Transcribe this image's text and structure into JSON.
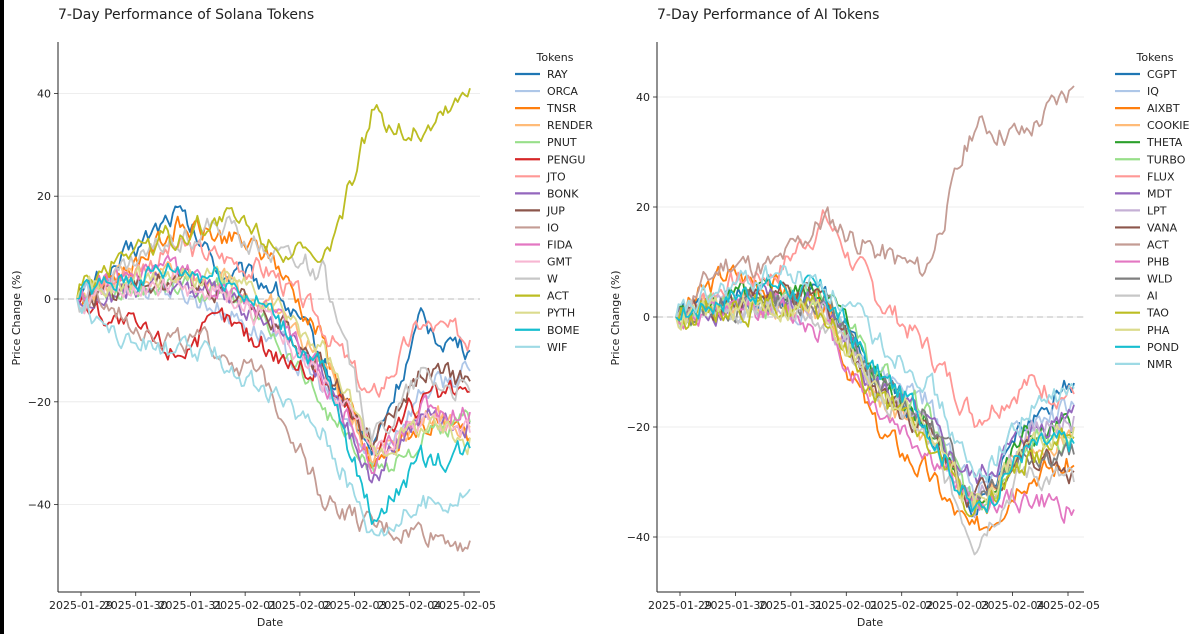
{
  "chart_data": [
    {
      "type": "line",
      "title": "7-Day Performance of Solana Tokens",
      "xlabel": "Date",
      "ylabel": "Price Change (%)",
      "ylim": [
        -57,
        50
      ],
      "yticks": [
        40,
        20,
        0,
        -20,
        -40
      ],
      "x_ticks": [
        "2025-01-29",
        "2025-01-30",
        "2025-01-31",
        "2025-02-01",
        "2025-02-02",
        "2025-02-03",
        "2025-02-04",
        "2025-02-05"
      ],
      "legend_title": "Tokens",
      "zero_line": true,
      "series": [
        {
          "name": "RAY",
          "color": "#1f77b4",
          "values": [
            0,
            8,
            17,
            5,
            3,
            -12,
            -30,
            -5,
            -10
          ]
        },
        {
          "name": "ORCA",
          "color": "#aec7e8",
          "values": [
            0,
            3,
            2,
            -2,
            -8,
            -17,
            -32,
            -18,
            -14
          ]
        },
        {
          "name": "TNSR",
          "color": "#ff7f0e",
          "values": [
            0,
            6,
            14,
            12,
            8,
            -8,
            -33,
            -24,
            -27
          ]
        },
        {
          "name": "RENDER",
          "color": "#ffbb78",
          "values": [
            0,
            4,
            6,
            4,
            -2,
            -12,
            -30,
            -22,
            -25
          ]
        },
        {
          "name": "PNUT",
          "color": "#98df8a",
          "values": [
            0,
            2,
            3,
            1,
            -6,
            -20,
            -34,
            -28,
            -24
          ]
        },
        {
          "name": "PENGU",
          "color": "#d62728",
          "values": [
            0,
            -5,
            -10,
            -4,
            -10,
            -15,
            -28,
            -20,
            -18
          ]
        },
        {
          "name": "JTO",
          "color": "#ff9896",
          "values": [
            0,
            5,
            10,
            8,
            5,
            -5,
            -20,
            -5,
            -8
          ]
        },
        {
          "name": "BONK",
          "color": "#9467bd",
          "values": [
            0,
            1,
            3,
            0,
            -6,
            -14,
            -35,
            -22,
            -24
          ]
        },
        {
          "name": "JUP",
          "color": "#8c564b",
          "values": [
            0,
            2,
            4,
            2,
            -4,
            -12,
            -28,
            -14,
            -16
          ]
        },
        {
          "name": "IO",
          "color": "#c49c94",
          "values": [
            0,
            -3,
            -8,
            -10,
            -18,
            -38,
            -45,
            -45,
            -47
          ]
        },
        {
          "name": "FIDA",
          "color": "#e377c2",
          "values": [
            0,
            3,
            5,
            3,
            -3,
            -14,
            -32,
            -22,
            -22
          ]
        },
        {
          "name": "GMT",
          "color": "#f7b6d2",
          "values": [
            0,
            2,
            3,
            1,
            -5,
            -15,
            -30,
            -23,
            -26
          ]
        },
        {
          "name": "W",
          "color": "#c7c7c7",
          "values": [
            0,
            6,
            12,
            14,
            10,
            5,
            -28,
            -14,
            -18
          ]
        },
        {
          "name": "ACT",
          "color": "#bcbd22",
          "values": [
            0,
            10,
            12,
            16,
            12,
            5,
            35,
            33,
            41
          ]
        },
        {
          "name": "PYTH",
          "color": "#dbdb8d",
          "values": [
            0,
            3,
            5,
            4,
            -2,
            -10,
            -30,
            -24,
            -27
          ]
        },
        {
          "name": "BOME",
          "color": "#17becf",
          "values": [
            0,
            4,
            6,
            5,
            -3,
            -14,
            -42,
            -32,
            -29
          ]
        },
        {
          "name": "WIF",
          "color": "#9edae5",
          "values": [
            0,
            -8,
            -10,
            -12,
            -20,
            -25,
            -45,
            -40,
            -37
          ]
        }
      ]
    },
    {
      "type": "line",
      "title": "7-Day Performance of AI Tokens",
      "xlabel": "Date",
      "ylabel": "Price Change (%)",
      "ylim": [
        -50,
        50
      ],
      "yticks": [
        40,
        20,
        0,
        -20,
        -40
      ],
      "x_ticks": [
        "2025-01-29",
        "2025-01-30",
        "2025-01-31",
        "2025-02-01",
        "2025-02-02",
        "2025-02-03",
        "2025-02-04",
        "2025-02-05"
      ],
      "legend_title": "Tokens",
      "zero_line": true,
      "series": [
        {
          "name": "CGPT",
          "color": "#1f77b4",
          "values": [
            0,
            3,
            2,
            4,
            -12,
            -18,
            -35,
            -20,
            -12
          ]
        },
        {
          "name": "IQ",
          "color": "#aec7e8",
          "values": [
            0,
            2,
            3,
            2,
            -10,
            -15,
            -32,
            -20,
            -16
          ]
        },
        {
          "name": "AIXBT",
          "color": "#ff7f0e",
          "values": [
            0,
            8,
            6,
            1,
            -20,
            -28,
            -40,
            -28,
            -27
          ]
        },
        {
          "name": "COOKIE",
          "color": "#ffbb78",
          "values": [
            0,
            3,
            3,
            1,
            -14,
            -22,
            -34,
            -24,
            -22
          ]
        },
        {
          "name": "THETA",
          "color": "#2ca02c",
          "values": [
            0,
            3,
            4,
            5,
            -10,
            -18,
            -35,
            -22,
            -20
          ]
        },
        {
          "name": "TURBO",
          "color": "#98df8a",
          "values": [
            0,
            2,
            3,
            6,
            -10,
            -17,
            -35,
            -23,
            -22
          ]
        },
        {
          "name": "FLUX",
          "color": "#ff9896",
          "values": [
            0,
            6,
            8,
            18,
            4,
            -5,
            -18,
            -12,
            -14
          ]
        },
        {
          "name": "MDT",
          "color": "#9467bd",
          "values": [
            0,
            2,
            3,
            2,
            -12,
            -20,
            -30,
            -22,
            -16
          ]
        },
        {
          "name": "LPT",
          "color": "#c5b0d5",
          "values": [
            0,
            1,
            2,
            1,
            -12,
            -20,
            -35,
            -22,
            -18
          ]
        },
        {
          "name": "VANA",
          "color": "#8c564b",
          "values": [
            0,
            3,
            4,
            3,
            -12,
            -20,
            -33,
            -24,
            -28
          ]
        },
        {
          "name": "ACT",
          "color": "#c49c94",
          "values": [
            0,
            10,
            9,
            18,
            12,
            8,
            35,
            33,
            42
          ]
        },
        {
          "name": "PHB",
          "color": "#e377c2",
          "values": [
            0,
            0,
            2,
            -2,
            -16,
            -24,
            -34,
            -33,
            -35
          ]
        },
        {
          "name": "WLD",
          "color": "#7f7f7f",
          "values": [
            0,
            2,
            3,
            3,
            -12,
            -18,
            -32,
            -24,
            -25
          ]
        },
        {
          "name": "AI",
          "color": "#c7c7c7",
          "values": [
            0,
            1,
            2,
            0,
            -14,
            -22,
            -40,
            -28,
            -30
          ]
        },
        {
          "name": "TAO",
          "color": "#bcbd22",
          "values": [
            0,
            2,
            2,
            0,
            -14,
            -22,
            -36,
            -26,
            -22
          ]
        },
        {
          "name": "PHA",
          "color": "#dbdb8d",
          "values": [
            0,
            1,
            2,
            1,
            -12,
            -20,
            -34,
            -24,
            -20
          ]
        },
        {
          "name": "POND",
          "color": "#17becf",
          "values": [
            0,
            4,
            6,
            4,
            -10,
            -18,
            -36,
            -24,
            -23
          ]
        },
        {
          "name": "NMR",
          "color": "#9edae5",
          "values": [
            0,
            5,
            8,
            6,
            -4,
            -10,
            -30,
            -18,
            -13
          ]
        }
      ]
    }
  ]
}
